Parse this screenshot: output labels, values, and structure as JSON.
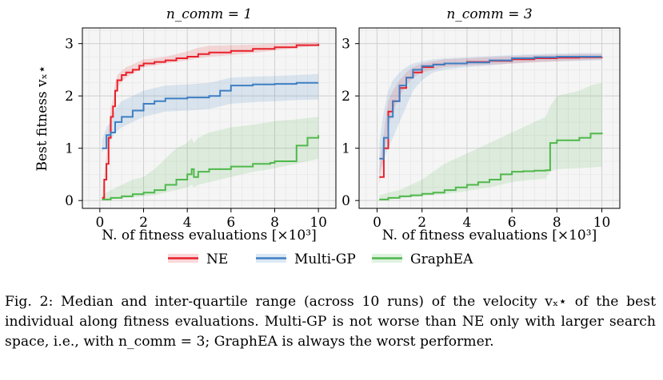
{
  "figure": {
    "caption_prefix": "Fig. 2:",
    "caption": "Median and inter-quartile range (across 10 runs) of the velocity vₓ⋆ of the best individual along fitness evaluations. Multi-GP is not worse than NE only with larger search space, i.e., with n_comm = 3; GraphEA is always the worst performer."
  },
  "colors": {
    "NE": "#e8202a",
    "Multi-GP": "#3d7fc4",
    "GraphEA": "#4fb84b",
    "grid": "#dcdcdc",
    "panel_bg": "#f5f5f5"
  },
  "chart_data": [
    {
      "type": "line",
      "title": "n_comm = 1",
      "xlabel": "N. of fitness evaluations [×10³]",
      "ylabel": "Best fitness vₓ⋆",
      "xlim": [
        -0.8,
        10.8
      ],
      "ylim": [
        -0.15,
        3.3
      ],
      "xticks": [
        0,
        2,
        4,
        6,
        8,
        10
      ],
      "yticks": [
        0,
        1,
        2,
        3
      ],
      "grid": true,
      "series": [
        {
          "name": "NE",
          "x": [
            0.1,
            0.2,
            0.3,
            0.4,
            0.5,
            0.6,
            0.7,
            0.8,
            1.0,
            1.2,
            1.5,
            1.8,
            2.0,
            2.5,
            3.0,
            3.5,
            4.0,
            4.5,
            5.0,
            6.0,
            7.0,
            8.0,
            9.0,
            10.0
          ],
          "median": [
            0.05,
            0.4,
            0.7,
            1.2,
            1.6,
            1.8,
            2.1,
            2.3,
            2.4,
            2.45,
            2.5,
            2.58,
            2.62,
            2.65,
            2.68,
            2.72,
            2.75,
            2.8,
            2.83,
            2.86,
            2.9,
            2.93,
            2.97,
            3.0
          ],
          "q1": [
            0.0,
            0.3,
            0.6,
            1.05,
            1.45,
            1.65,
            1.95,
            2.15,
            2.28,
            2.35,
            2.42,
            2.5,
            2.55,
            2.58,
            2.62,
            2.65,
            2.68,
            2.72,
            2.75,
            2.78,
            2.82,
            2.87,
            2.92,
            2.96
          ],
          "q3": [
            0.1,
            0.5,
            0.85,
            1.35,
            1.75,
            1.95,
            2.25,
            2.4,
            2.48,
            2.55,
            2.6,
            2.66,
            2.7,
            2.72,
            2.75,
            2.8,
            2.85,
            2.92,
            2.96,
            2.97,
            2.98,
            3.0,
            3.02,
            3.03
          ]
        },
        {
          "name": "Multi-GP",
          "x": [
            0.1,
            0.3,
            0.5,
            0.7,
            1.0,
            1.5,
            2.0,
            2.5,
            3.0,
            4.0,
            5.0,
            5.5,
            6.0,
            7.0,
            8.0,
            9.0,
            10.0
          ],
          "median": [
            1.0,
            1.25,
            1.3,
            1.5,
            1.6,
            1.72,
            1.85,
            1.9,
            1.95,
            1.97,
            2.0,
            2.1,
            2.2,
            2.22,
            2.23,
            2.25,
            2.25
          ],
          "q1": [
            0.9,
            1.1,
            1.15,
            1.3,
            1.4,
            1.5,
            1.6,
            1.65,
            1.7,
            1.72,
            1.75,
            1.8,
            1.85,
            1.88,
            1.9,
            1.92,
            1.93
          ],
          "q3": [
            1.15,
            1.4,
            1.5,
            1.75,
            1.9,
            2.0,
            2.1,
            2.15,
            2.2,
            2.22,
            2.25,
            2.3,
            2.35,
            2.37,
            2.38,
            2.4,
            2.42
          ]
        },
        {
          "name": "GraphEA",
          "x": [
            0.1,
            0.5,
            1.0,
            1.5,
            2.0,
            2.5,
            3.0,
            3.5,
            4.0,
            4.2,
            4.3,
            4.5,
            5.0,
            6.0,
            7.0,
            7.8,
            8.0,
            9.0,
            9.5,
            10.0
          ],
          "median": [
            0.02,
            0.05,
            0.08,
            0.12,
            0.15,
            0.2,
            0.3,
            0.4,
            0.5,
            0.6,
            0.45,
            0.55,
            0.6,
            0.65,
            0.7,
            0.72,
            0.75,
            1.05,
            1.2,
            1.25
          ],
          "q1": [
            0.0,
            0.02,
            0.04,
            0.06,
            0.08,
            0.1,
            0.15,
            0.2,
            0.25,
            0.3,
            0.25,
            0.3,
            0.35,
            0.45,
            0.55,
            0.6,
            0.62,
            0.7,
            0.75,
            0.8
          ],
          "q3": [
            0.1,
            0.2,
            0.3,
            0.4,
            0.45,
            0.6,
            0.8,
            1.0,
            1.1,
            1.2,
            1.1,
            1.2,
            1.3,
            1.4,
            1.45,
            1.5,
            1.52,
            1.55,
            1.58,
            1.6
          ]
        }
      ]
    },
    {
      "type": "line",
      "title": "n_comm = 3",
      "xlabel": "N. of fitness evaluations [×10³]",
      "xlim": [
        -0.8,
        10.8
      ],
      "ylim": [
        -0.15,
        3.3
      ],
      "xticks": [
        0,
        2,
        4,
        6,
        8,
        10
      ],
      "yticks": [
        0,
        1,
        2,
        3
      ],
      "grid": true,
      "series": [
        {
          "name": "NE",
          "x": [
            0.1,
            0.3,
            0.5,
            0.7,
            1.0,
            1.3,
            1.6,
            2.0,
            2.5,
            3.0,
            4.0,
            5.0,
            6.0,
            7.0,
            8.0,
            9.0,
            10.0
          ],
          "median": [
            0.45,
            1.0,
            1.7,
            1.9,
            2.15,
            2.35,
            2.45,
            2.55,
            2.6,
            2.62,
            2.65,
            2.67,
            2.7,
            2.72,
            2.73,
            2.74,
            2.75
          ],
          "q1": [
            0.3,
            0.8,
            1.4,
            1.7,
            2.0,
            2.2,
            2.35,
            2.45,
            2.5,
            2.55,
            2.58,
            2.6,
            2.62,
            2.64,
            2.66,
            2.68,
            2.7
          ],
          "q3": [
            0.6,
            1.3,
            1.9,
            2.1,
            2.3,
            2.45,
            2.55,
            2.62,
            2.66,
            2.7,
            2.72,
            2.74,
            2.76,
            2.78,
            2.79,
            2.8,
            2.8
          ]
        },
        {
          "name": "Multi-GP",
          "x": [
            0.1,
            0.3,
            0.5,
            0.7,
            1.0,
            1.3,
            1.6,
            2.0,
            2.5,
            3.0,
            4.0,
            5.0,
            6.0,
            7.0,
            8.0,
            9.0,
            10.0
          ],
          "median": [
            0.8,
            1.2,
            1.6,
            1.9,
            2.2,
            2.35,
            2.5,
            2.57,
            2.6,
            2.62,
            2.64,
            2.68,
            2.72,
            2.74,
            2.75,
            2.75,
            2.75
          ],
          "q1": [
            0.5,
            0.8,
            1.0,
            1.2,
            1.5,
            1.8,
            2.1,
            2.3,
            2.45,
            2.5,
            2.55,
            2.58,
            2.62,
            2.65,
            2.66,
            2.67,
            2.68
          ],
          "q3": [
            1.1,
            1.7,
            2.1,
            2.3,
            2.45,
            2.55,
            2.62,
            2.66,
            2.7,
            2.72,
            2.74,
            2.76,
            2.78,
            2.8,
            2.81,
            2.82,
            2.82
          ]
        },
        {
          "name": "GraphEA",
          "x": [
            0.1,
            0.5,
            1.0,
            1.5,
            2.0,
            2.5,
            3.0,
            3.5,
            4.0,
            4.5,
            5.0,
            5.5,
            6.0,
            6.5,
            7.0,
            7.5,
            7.7,
            8.0,
            9.0,
            9.5,
            10.0
          ],
          "median": [
            0.02,
            0.05,
            0.08,
            0.1,
            0.13,
            0.15,
            0.2,
            0.25,
            0.3,
            0.35,
            0.4,
            0.5,
            0.55,
            0.56,
            0.57,
            0.58,
            1.1,
            1.15,
            1.2,
            1.28,
            1.3
          ],
          "q1": [
            0.0,
            0.02,
            0.04,
            0.06,
            0.08,
            0.1,
            0.12,
            0.15,
            0.18,
            0.22,
            0.25,
            0.3,
            0.35,
            0.38,
            0.4,
            0.42,
            0.55,
            0.6,
            0.62,
            0.63,
            0.65
          ],
          "q3": [
            0.1,
            0.15,
            0.2,
            0.3,
            0.4,
            0.55,
            0.7,
            0.8,
            0.9,
            1.0,
            1.1,
            1.2,
            1.3,
            1.4,
            1.5,
            1.6,
            1.8,
            2.0,
            2.1,
            2.2,
            2.25
          ]
        }
      ]
    }
  ],
  "legend": {
    "placement": "bottom-center",
    "entries": [
      "NE",
      "Multi-GP",
      "GraphEA"
    ]
  }
}
